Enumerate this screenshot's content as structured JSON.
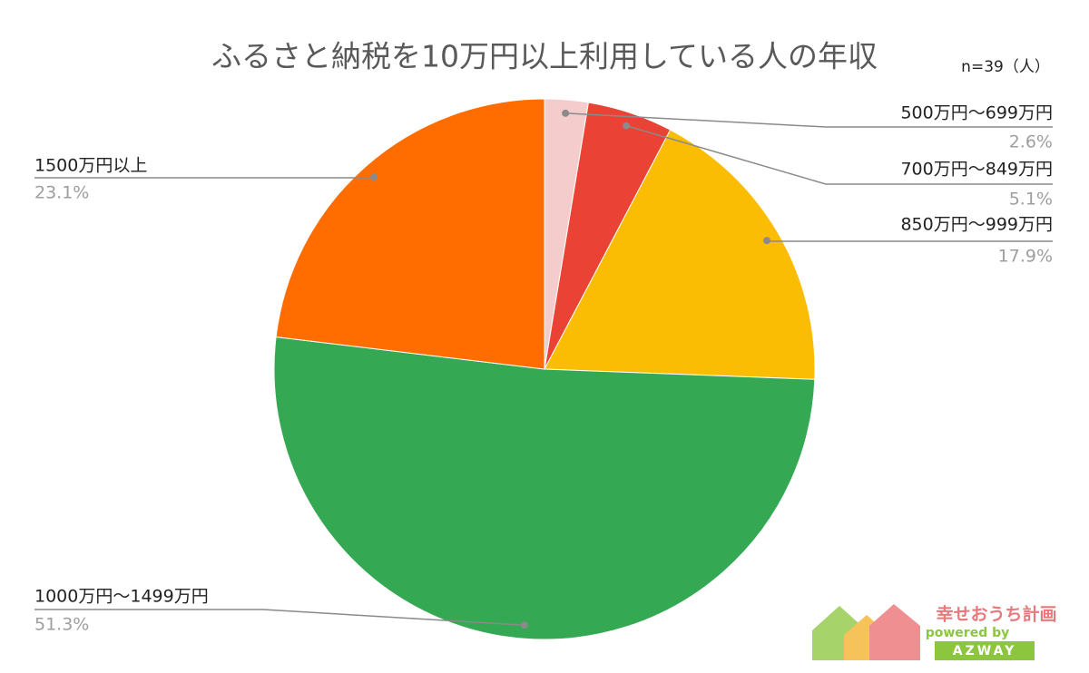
{
  "chart_data": {
    "type": "pie",
    "title": "ふるさと納税を10万円以上利用している人の年収",
    "subtitle": "n=39（人）",
    "categories": [
      "500万円〜699万円",
      "700万円〜849万円",
      "850万円〜999万円",
      "1000万円〜1499万円",
      "1500万円以上"
    ],
    "values": [
      2.6,
      5.1,
      17.9,
      51.3,
      23.1
    ],
    "value_labels": [
      "2.6%",
      "5.1%",
      "17.9%",
      "51.3%",
      "23.1%"
    ],
    "colors": [
      "#f4cccc",
      "#ea4335",
      "#fbbc04",
      "#34a853",
      "#ff6d01"
    ]
  },
  "logo": {
    "name": "幸せおうち計画",
    "tagline": "powered by",
    "brand": "AZWAY"
  }
}
